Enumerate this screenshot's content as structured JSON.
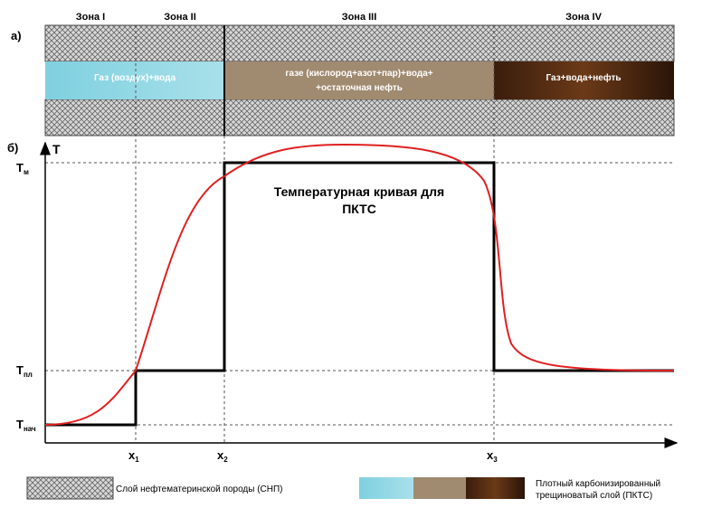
{
  "panel_a": {
    "label": "а)",
    "zones": [
      "Зона I",
      "Зона II",
      "Зона III",
      "Зона IV"
    ],
    "layers": [
      "Газ (воздух)+вода",
      [
        "газе (кислород+азот+пар)+вода+",
        "+остаточная нефть"
      ],
      "Газ+вода+нефть"
    ]
  },
  "panel_b": {
    "label": "б)",
    "y_axis": "T",
    "y_levels": [
      {
        "main": "T",
        "sub": "м"
      },
      {
        "main": "T",
        "sub": "пл"
      },
      {
        "main": "T",
        "sub": "нач"
      }
    ],
    "x_marks": [
      {
        "main": "x",
        "sub": "1"
      },
      {
        "main": "x",
        "sub": "2"
      },
      {
        "main": "x",
        "sub": "3"
      }
    ],
    "annotation": [
      "Температурная кривая для",
      "ПКТС"
    ]
  },
  "legend": {
    "snp": "Слой нефтематеринской породы (СНП)",
    "pkts": [
      "Плотный карбонизированный",
      "трещиноватый слой (ПКТС)"
    ]
  }
}
